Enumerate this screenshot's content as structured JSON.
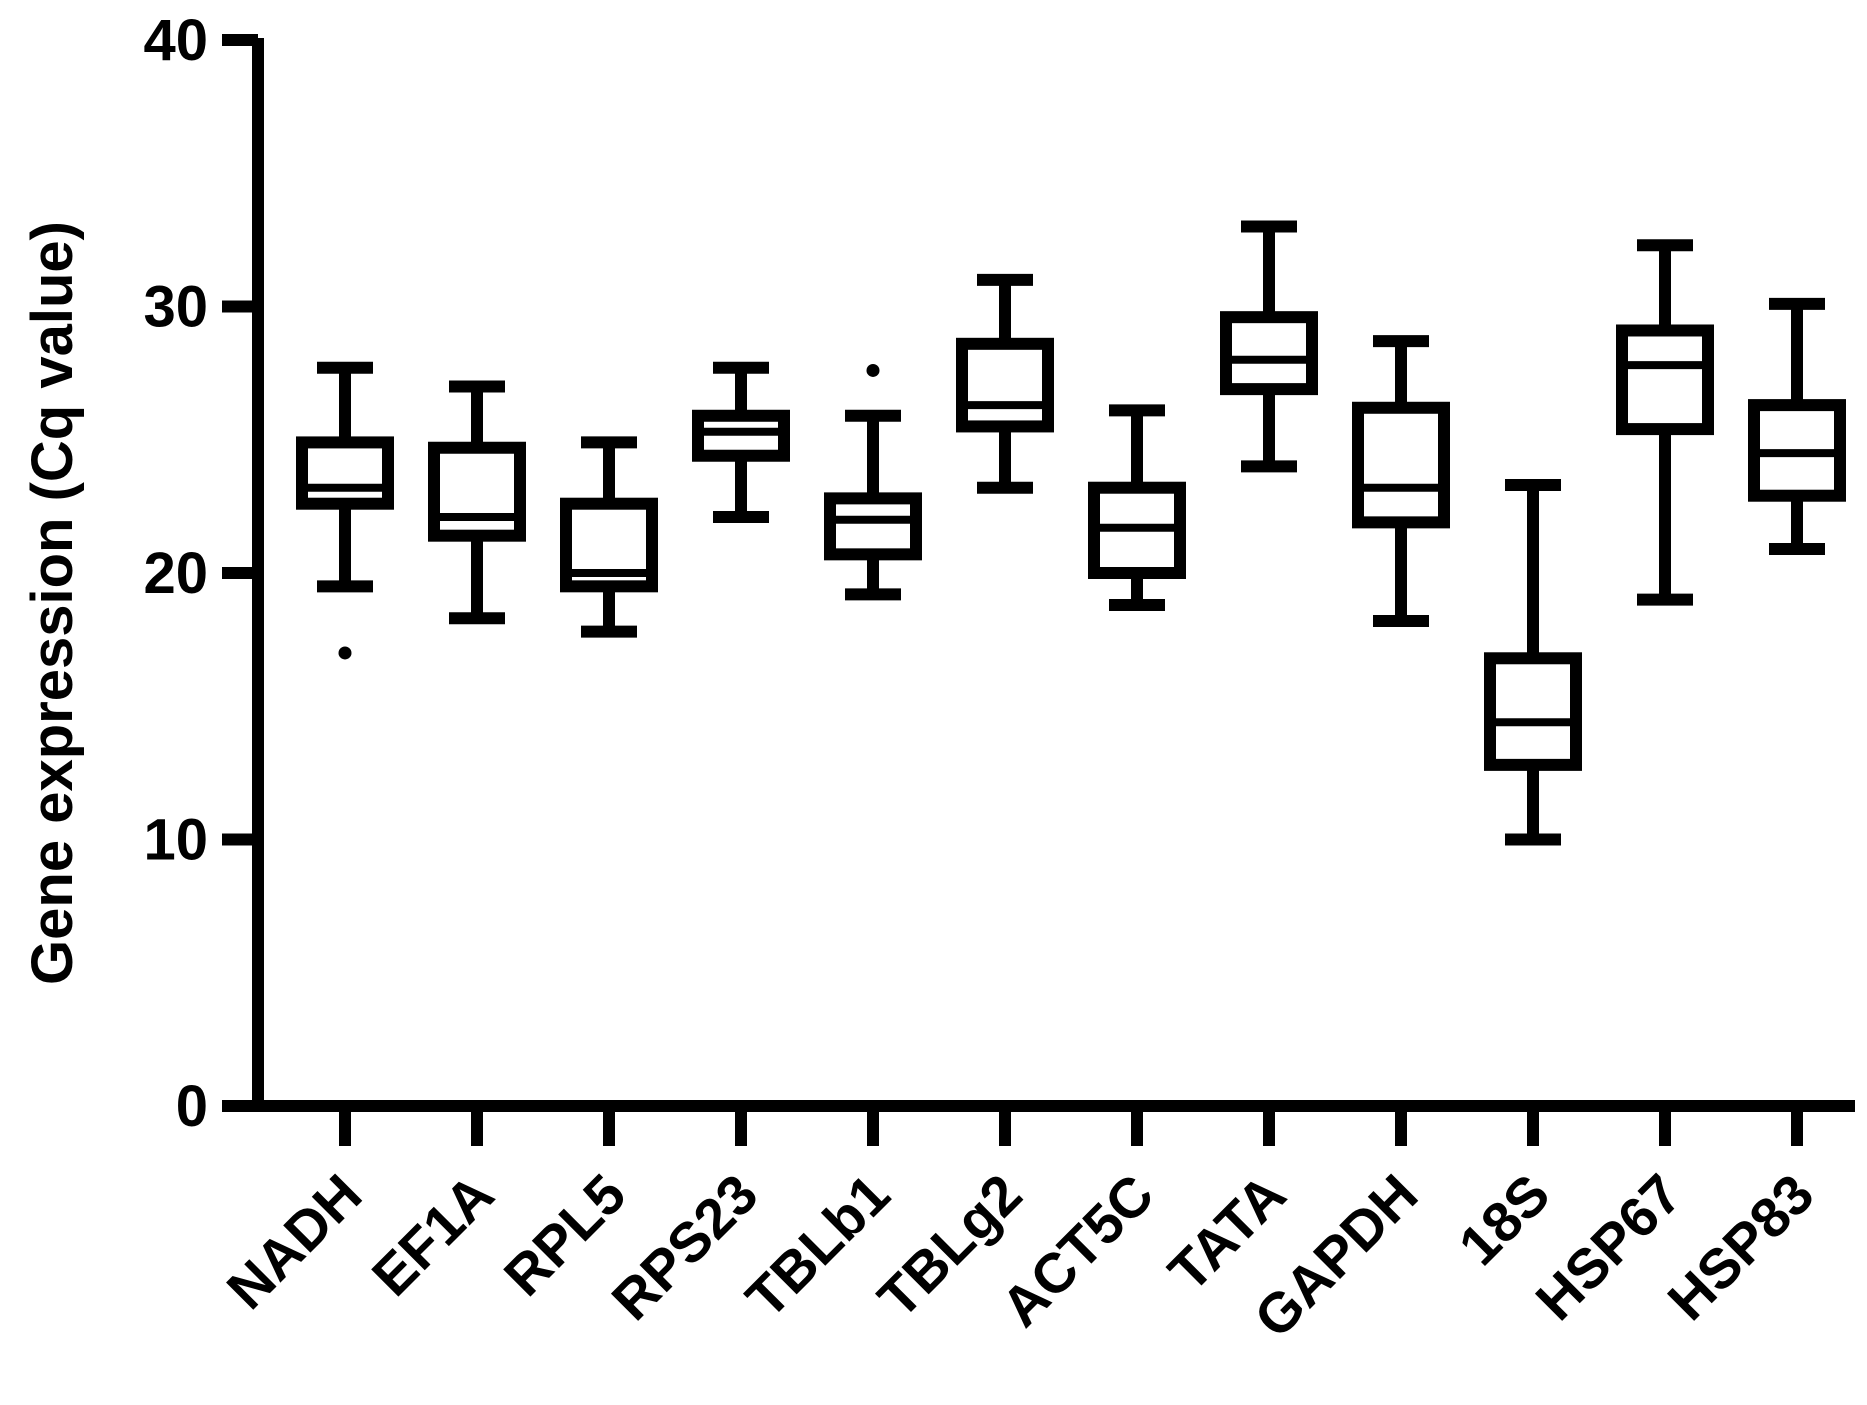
{
  "chart_data": {
    "type": "boxplot",
    "title": "",
    "xlabel": "",
    "ylabel": "Gene expression (Cq value)",
    "ylim": [
      0,
      40
    ],
    "yticks": [
      0,
      10,
      20,
      30,
      40
    ],
    "grid": false,
    "series": [
      {
        "category": "NADH",
        "min": 19.5,
        "q1": 22.6,
        "median": 23.2,
        "q3": 24.9,
        "max": 27.7,
        "outliers": [
          17.0
        ]
      },
      {
        "category": "EF1A",
        "min": 18.3,
        "q1": 21.4,
        "median": 22.1,
        "q3": 24.7,
        "max": 27.0,
        "outliers": []
      },
      {
        "category": "RPL5",
        "min": 17.8,
        "q1": 19.5,
        "median": 20.0,
        "q3": 22.6,
        "max": 24.9,
        "outliers": []
      },
      {
        "category": "RPS23",
        "min": 22.1,
        "q1": 24.4,
        "median": 25.3,
        "q3": 25.9,
        "max": 27.7,
        "outliers": []
      },
      {
        "category": "TBLb1",
        "min": 19.2,
        "q1": 20.7,
        "median": 22.0,
        "q3": 22.8,
        "max": 25.9,
        "outliers": [
          27.6
        ]
      },
      {
        "category": "TBLg2",
        "min": 23.2,
        "q1": 25.5,
        "median": 26.3,
        "q3": 28.6,
        "max": 31.0,
        "outliers": []
      },
      {
        "category": "ACT5C",
        "min": 18.8,
        "q1": 20.0,
        "median": 21.7,
        "q3": 23.2,
        "max": 26.1,
        "outliers": []
      },
      {
        "category": "TATA",
        "min": 24.0,
        "q1": 26.9,
        "median": 28.0,
        "q3": 29.6,
        "max": 33.0,
        "outliers": []
      },
      {
        "category": "GAPDH",
        "min": 18.2,
        "q1": 21.9,
        "median": 23.2,
        "q3": 26.2,
        "max": 28.7,
        "outliers": []
      },
      {
        "category": "18S",
        "min": 10.0,
        "q1": 12.8,
        "median": 14.4,
        "q3": 16.8,
        "max": 23.3,
        "outliers": []
      },
      {
        "category": "HSP67",
        "min": 19.0,
        "q1": 25.4,
        "median": 27.8,
        "q3": 29.1,
        "max": 32.3,
        "outliers": []
      },
      {
        "category": "HSP83",
        "min": 20.9,
        "q1": 22.9,
        "median": 24.5,
        "q3": 26.3,
        "max": 30.1,
        "outliers": []
      }
    ]
  }
}
